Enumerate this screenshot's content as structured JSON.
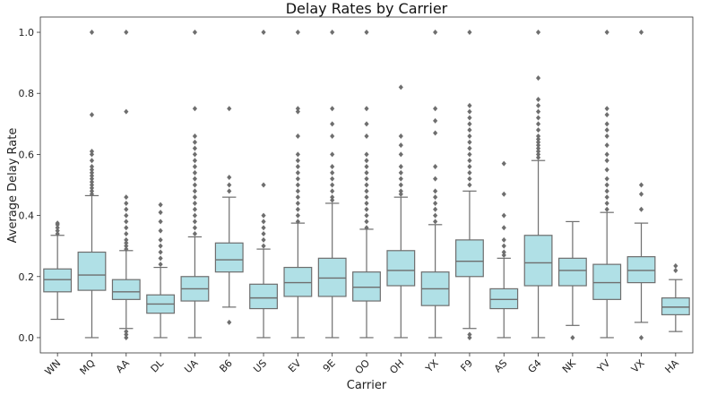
{
  "chart_data": {
    "type": "box",
    "title": "Delay Rates by Carrier",
    "xlabel": "Carrier",
    "ylabel": "Average Delay Rate",
    "ylim": [
      -0.05,
      1.05
    ],
    "yticks": [
      "0.0",
      "0.2",
      "0.4",
      "0.6",
      "0.8",
      "1.0"
    ],
    "box_color": "#b0e0e6",
    "line_color": "#6e6e6e",
    "categories": [
      "WN",
      "MQ",
      "AA",
      "DL",
      "UA",
      "B6",
      "US",
      "EV",
      "9E",
      "OO",
      "OH",
      "YX",
      "F9",
      "AS",
      "G4",
      "NK",
      "YV",
      "VX",
      "HA"
    ],
    "boxes": [
      {
        "carrier": "WN",
        "whislo": 0.06,
        "q1": 0.15,
        "med": 0.19,
        "q3": 0.225,
        "whishi": 0.335,
        "fliers": [
          0.34,
          0.35,
          0.36,
          0.37,
          0.375
        ]
      },
      {
        "carrier": "MQ",
        "whislo": 0.0,
        "q1": 0.155,
        "med": 0.205,
        "q3": 0.28,
        "whishi": 0.465,
        "fliers": [
          0.47,
          0.48,
          0.49,
          0.5,
          0.51,
          0.52,
          0.53,
          0.54,
          0.55,
          0.56,
          0.58,
          0.6,
          0.61,
          0.73,
          1.0
        ]
      },
      {
        "carrier": "AA",
        "whislo": 0.03,
        "q1": 0.125,
        "med": 0.15,
        "q3": 0.19,
        "whishi": 0.285,
        "fliers": [
          0.0,
          0.01,
          0.02,
          0.29,
          0.3,
          0.31,
          0.32,
          0.34,
          0.36,
          0.38,
          0.4,
          0.42,
          0.44,
          0.46,
          0.74,
          1.0
        ]
      },
      {
        "carrier": "DL",
        "whislo": 0.0,
        "q1": 0.08,
        "med": 0.11,
        "q3": 0.14,
        "whishi": 0.23,
        "fliers": [
          0.24,
          0.26,
          0.28,
          0.3,
          0.32,
          0.35,
          0.38,
          0.41,
          0.435
        ]
      },
      {
        "carrier": "UA",
        "whislo": 0.0,
        "q1": 0.12,
        "med": 0.16,
        "q3": 0.2,
        "whishi": 0.33,
        "fliers": [
          0.34,
          0.36,
          0.38,
          0.4,
          0.42,
          0.44,
          0.46,
          0.48,
          0.5,
          0.52,
          0.54,
          0.56,
          0.58,
          0.6,
          0.62,
          0.64,
          0.66,
          0.75,
          1.0
        ]
      },
      {
        "carrier": "B6",
        "whislo": 0.1,
        "q1": 0.215,
        "med": 0.255,
        "q3": 0.31,
        "whishi": 0.46,
        "fliers": [
          0.05,
          0.48,
          0.5,
          0.525,
          0.75
        ]
      },
      {
        "carrier": "US",
        "whislo": 0.0,
        "q1": 0.095,
        "med": 0.13,
        "q3": 0.175,
        "whishi": 0.29,
        "fliers": [
          0.3,
          0.32,
          0.34,
          0.36,
          0.38,
          0.4,
          0.5,
          1.0
        ]
      },
      {
        "carrier": "EV",
        "whislo": 0.0,
        "q1": 0.135,
        "med": 0.18,
        "q3": 0.23,
        "whishi": 0.375,
        "fliers": [
          0.38,
          0.4,
          0.42,
          0.44,
          0.46,
          0.48,
          0.5,
          0.52,
          0.54,
          0.56,
          0.58,
          0.6,
          0.66,
          0.74,
          0.75,
          1.0
        ]
      },
      {
        "carrier": "9E",
        "whislo": 0.0,
        "q1": 0.135,
        "med": 0.195,
        "q3": 0.26,
        "whishi": 0.44,
        "fliers": [
          0.45,
          0.46,
          0.48,
          0.5,
          0.52,
          0.54,
          0.56,
          0.6,
          0.66,
          0.7,
          0.75,
          1.0
        ]
      },
      {
        "carrier": "OO",
        "whislo": 0.0,
        "q1": 0.12,
        "med": 0.165,
        "q3": 0.215,
        "whishi": 0.355,
        "fliers": [
          0.36,
          0.38,
          0.4,
          0.42,
          0.44,
          0.46,
          0.48,
          0.5,
          0.52,
          0.54,
          0.56,
          0.58,
          0.6,
          0.66,
          0.7,
          0.75,
          1.0
        ]
      },
      {
        "carrier": "OH",
        "whislo": 0.0,
        "q1": 0.17,
        "med": 0.22,
        "q3": 0.285,
        "whishi": 0.46,
        "fliers": [
          0.47,
          0.48,
          0.5,
          0.52,
          0.54,
          0.56,
          0.6,
          0.63,
          0.66,
          0.82
        ]
      },
      {
        "carrier": "YX",
        "whislo": 0.0,
        "q1": 0.105,
        "med": 0.16,
        "q3": 0.215,
        "whishi": 0.37,
        "fliers": [
          0.38,
          0.4,
          0.42,
          0.44,
          0.46,
          0.48,
          0.52,
          0.56,
          0.67,
          0.71,
          0.75,
          1.0
        ]
      },
      {
        "carrier": "F9",
        "whislo": 0.03,
        "q1": 0.2,
        "med": 0.25,
        "q3": 0.32,
        "whishi": 0.48,
        "fliers": [
          0.0,
          0.01,
          0.5,
          0.52,
          0.54,
          0.56,
          0.58,
          0.6,
          0.62,
          0.64,
          0.66,
          0.68,
          0.7,
          0.72,
          0.74,
          0.76,
          1.0
        ]
      },
      {
        "carrier": "AS",
        "whislo": 0.0,
        "q1": 0.095,
        "med": 0.125,
        "q3": 0.16,
        "whishi": 0.26,
        "fliers": [
          0.27,
          0.28,
          0.3,
          0.32,
          0.36,
          0.4,
          0.47,
          0.57
        ]
      },
      {
        "carrier": "G4",
        "whislo": 0.0,
        "q1": 0.17,
        "med": 0.245,
        "q3": 0.335,
        "whishi": 0.58,
        "fliers": [
          0.59,
          0.6,
          0.61,
          0.62,
          0.63,
          0.64,
          0.65,
          0.66,
          0.68,
          0.7,
          0.72,
          0.74,
          0.76,
          0.78,
          0.85,
          1.0
        ]
      },
      {
        "carrier": "NK",
        "whislo": 0.04,
        "q1": 0.17,
        "med": 0.22,
        "q3": 0.26,
        "whishi": 0.38,
        "fliers": [
          0.0
        ]
      },
      {
        "carrier": "YV",
        "whislo": 0.0,
        "q1": 0.125,
        "med": 0.18,
        "q3": 0.24,
        "whishi": 0.41,
        "fliers": [
          0.42,
          0.44,
          0.46,
          0.48,
          0.5,
          0.52,
          0.55,
          0.58,
          0.6,
          0.63,
          0.66,
          0.68,
          0.7,
          0.73,
          0.75,
          1.0
        ]
      },
      {
        "carrier": "VX",
        "whislo": 0.05,
        "q1": 0.18,
        "med": 0.22,
        "q3": 0.265,
        "whishi": 0.375,
        "fliers": [
          0.0,
          0.42,
          0.47,
          0.5,
          1.0
        ]
      },
      {
        "carrier": "HA",
        "whislo": 0.02,
        "q1": 0.075,
        "med": 0.1,
        "q3": 0.13,
        "whishi": 0.19,
        "fliers": [
          0.22,
          0.235
        ]
      }
    ]
  }
}
